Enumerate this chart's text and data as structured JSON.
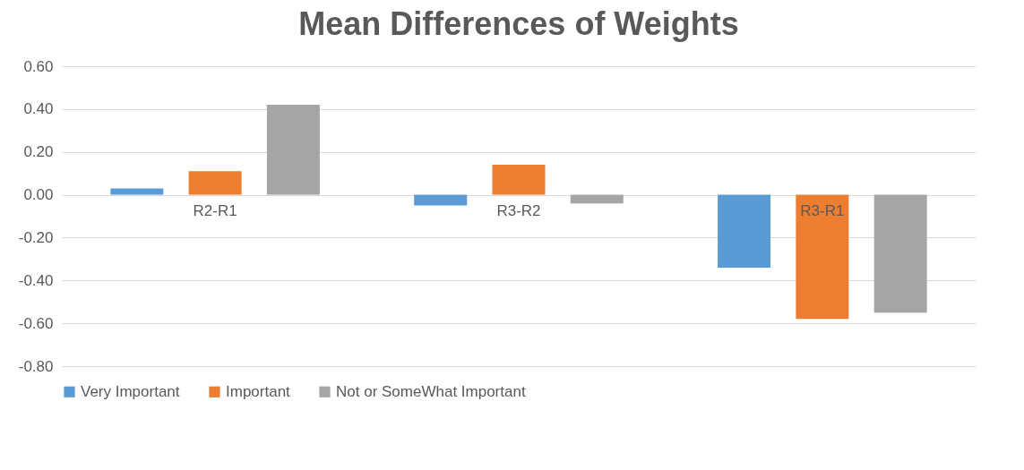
{
  "chart_data": {
    "type": "bar",
    "title": "Mean Differences of Weights",
    "categories": [
      "R2-R1",
      "R3-R2",
      "R3-R1"
    ],
    "series": [
      {
        "name": "Very Important",
        "color": "#5b9bd5",
        "values": [
          0.03,
          -0.05,
          -0.34
        ]
      },
      {
        "name": "Important",
        "color": "#ed7d31",
        "values": [
          0.11,
          0.14,
          -0.58
        ]
      },
      {
        "name": "Not or SomeWhat Important",
        "color": "#a5a5a5",
        "values": [
          0.42,
          -0.04,
          -0.55
        ]
      }
    ],
    "ylim": [
      -0.8,
      0.6
    ],
    "yticks": [
      {
        "value": -0.8,
        "label": "-0.80"
      },
      {
        "value": -0.6,
        "label": "-0.60"
      },
      {
        "value": -0.4,
        "label": "-0.40"
      },
      {
        "value": -0.2,
        "label": "-0.20"
      },
      {
        "value": 0,
        "label": "0.00"
      },
      {
        "value": 0.2,
        "label": "0.20"
      },
      {
        "value": 0.4,
        "label": "0.40"
      },
      {
        "value": 0.6,
        "label": "0.60"
      }
    ],
    "grid": "y",
    "legend": "bottom"
  }
}
